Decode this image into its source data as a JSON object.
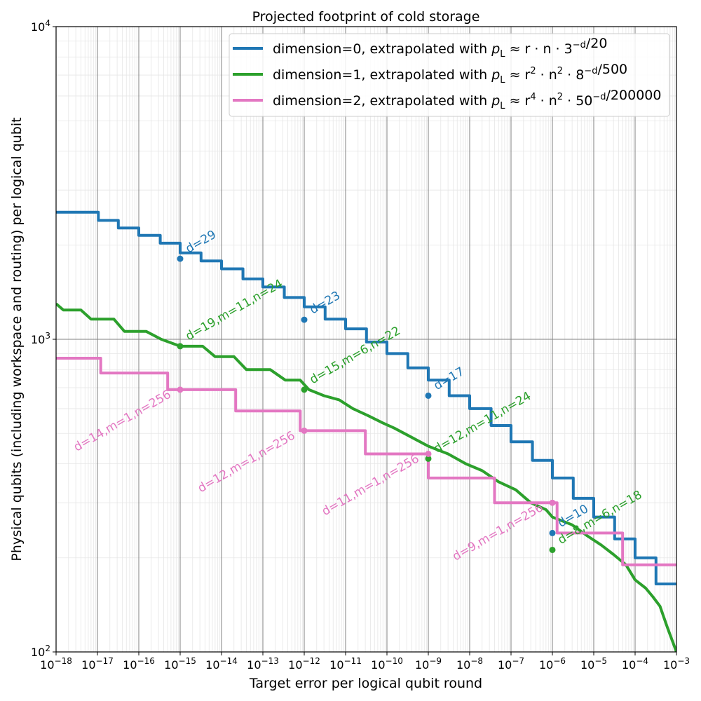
{
  "chart_data": {
    "type": "line",
    "title": "Projected footprint of cold storage",
    "xlabel": "Target error per logical qubit round",
    "ylabel": "Physical qubits (including workspace and routing) per logical qubit",
    "x_scale": "log",
    "y_scale": "log",
    "xlim": [
      1e-18,
      0.001
    ],
    "ylim": [
      100,
      10000
    ],
    "x_ticks": [
      {
        "value": 1e-18,
        "base": "10",
        "exp": "−18"
      },
      {
        "value": 1e-17,
        "base": "10",
        "exp": "−17"
      },
      {
        "value": 1e-16,
        "base": "10",
        "exp": "−16"
      },
      {
        "value": 1e-15,
        "base": "10",
        "exp": "−15"
      },
      {
        "value": 1e-14,
        "base": "10",
        "exp": "−14"
      },
      {
        "value": 1e-13,
        "base": "10",
        "exp": "−13"
      },
      {
        "value": 1e-12,
        "base": "10",
        "exp": "−12"
      },
      {
        "value": 1e-11,
        "base": "10",
        "exp": "−11"
      },
      {
        "value": 1e-10,
        "base": "10",
        "exp": "−10"
      },
      {
        "value": 1e-09,
        "base": "10",
        "exp": "−9"
      },
      {
        "value": 1e-08,
        "base": "10",
        "exp": "−8"
      },
      {
        "value": 1e-07,
        "base": "10",
        "exp": "−7"
      },
      {
        "value": 1e-06,
        "base": "10",
        "exp": "−6"
      },
      {
        "value": 1e-05,
        "base": "10",
        "exp": "−5"
      },
      {
        "value": 0.0001,
        "base": "10",
        "exp": "−4"
      },
      {
        "value": 0.001,
        "base": "10",
        "exp": "−3"
      }
    ],
    "y_ticks": [
      {
        "value": 100,
        "base": "10",
        "exp": "2"
      },
      {
        "value": 1000,
        "base": "10",
        "exp": "3"
      },
      {
        "value": 10000,
        "base": "10",
        "exp": "4"
      }
    ],
    "grid": true,
    "legend_position": "top-right",
    "series": [
      {
        "name": "dimension=0, extrapolated with",
        "formula": {
          "pre": "p",
          "sub": "L",
          "mid": " ≈ r · n · 3",
          "sup": "−d",
          "post": "/20"
        },
        "color": "#1f77b4",
        "points": [
          [
            1e-18,
            2550
          ],
          [
            1.05e-17,
            2550
          ],
          [
            1.05e-17,
            2400
          ],
          [
            3.2e-17,
            2400
          ],
          [
            3.2e-17,
            2270
          ],
          [
            1e-16,
            2270
          ],
          [
            1e-16,
            2150
          ],
          [
            3.3e-16,
            2150
          ],
          [
            3.3e-16,
            2030
          ],
          [
            1e-15,
            2030
          ],
          [
            1e-15,
            1890
          ],
          [
            3.2e-15,
            1890
          ],
          [
            3.2e-15,
            1780
          ],
          [
            1e-14,
            1780
          ],
          [
            1e-14,
            1680
          ],
          [
            3.3e-14,
            1680
          ],
          [
            3.3e-14,
            1560
          ],
          [
            1e-13,
            1560
          ],
          [
            1e-13,
            1470
          ],
          [
            3.3e-13,
            1470
          ],
          [
            3.3e-13,
            1360
          ],
          [
            1e-12,
            1360
          ],
          [
            1e-12,
            1270
          ],
          [
            3.2e-12,
            1270
          ],
          [
            3.2e-12,
            1160
          ],
          [
            1e-11,
            1160
          ],
          [
            1e-11,
            1080
          ],
          [
            3.2e-11,
            1080
          ],
          [
            3.2e-11,
            980
          ],
          [
            1e-10,
            980
          ],
          [
            1e-10,
            900
          ],
          [
            3.2e-10,
            900
          ],
          [
            3.2e-10,
            810
          ],
          [
            1e-09,
            810
          ],
          [
            1e-09,
            740
          ],
          [
            3.2e-09,
            740
          ],
          [
            3.2e-09,
            660
          ],
          [
            1e-08,
            660
          ],
          [
            1e-08,
            600
          ],
          [
            3.3e-08,
            600
          ],
          [
            3.3e-08,
            530
          ],
          [
            1e-07,
            530
          ],
          [
            1e-07,
            470
          ],
          [
            3.3e-07,
            470
          ],
          [
            3.3e-07,
            410
          ],
          [
            1e-06,
            410
          ],
          [
            1e-06,
            360
          ],
          [
            3.2e-06,
            360
          ],
          [
            3.2e-06,
            310
          ],
          [
            1e-05,
            310
          ],
          [
            1e-05,
            270
          ],
          [
            3.2e-05,
            270
          ],
          [
            3.2e-05,
            230
          ],
          [
            0.0001,
            230
          ],
          [
            0.0001,
            200
          ],
          [
            0.00032,
            200
          ],
          [
            0.00032,
            165
          ],
          [
            0.001,
            165
          ]
        ],
        "markers": [
          {
            "x": 1e-15,
            "y": 1810,
            "label": "d=29"
          },
          {
            "x": 1e-12,
            "y": 1155,
            "label": "d=23"
          },
          {
            "x": 1e-09,
            "y": 660,
            "label": "d=17"
          },
          {
            "x": 1e-06,
            "y": 240,
            "label": "d=10"
          }
        ]
      },
      {
        "name": "dimension=1, extrapolated with",
        "formula": {
          "pre": "p",
          "sub": "L",
          "mid": " ≈ r",
          "sup": "2",
          "mid2": " · n",
          "sup2": "2",
          "mid3": " · 8",
          "sup3": "−d",
          "post": "/500"
        },
        "color": "#2ca02c",
        "points": [
          [
            1e-18,
            1300
          ],
          [
            1.5e-18,
            1240
          ],
          [
            4e-18,
            1240
          ],
          [
            7e-18,
            1160
          ],
          [
            2.5e-17,
            1160
          ],
          [
            4.5e-17,
            1060
          ],
          [
            1.5e-16,
            1060
          ],
          [
            3.5e-16,
            1000
          ],
          [
            1e-15,
            950
          ],
          [
            3.5e-15,
            950
          ],
          [
            7e-15,
            880
          ],
          [
            2e-14,
            880
          ],
          [
            4e-14,
            800
          ],
          [
            1.5e-13,
            800
          ],
          [
            3.5e-13,
            740
          ],
          [
            8e-13,
            740
          ],
          [
            1.3e-12,
            690
          ],
          [
            3e-12,
            660
          ],
          [
            7e-12,
            640
          ],
          [
            1.5e-11,
            600
          ],
          [
            3.5e-11,
            570
          ],
          [
            8e-11,
            540
          ],
          [
            1.5e-10,
            520
          ],
          [
            3.5e-10,
            490
          ],
          [
            1e-09,
            455
          ],
          [
            3e-09,
            430
          ],
          [
            8e-09,
            400
          ],
          [
            2e-08,
            380
          ],
          [
            5e-08,
            350
          ],
          [
            1.3e-07,
            330
          ],
          [
            3e-07,
            300
          ],
          [
            7e-07,
            285
          ],
          [
            1e-06,
            270
          ],
          [
            3e-06,
            255
          ],
          [
            7e-06,
            235
          ],
          [
            1.5e-05,
            220
          ],
          [
            3e-05,
            205
          ],
          [
            6e-05,
            190
          ],
          [
            0.0001,
            170
          ],
          [
            0.00018,
            160
          ],
          [
            0.00027,
            150
          ],
          [
            0.0004,
            140
          ],
          [
            0.0006,
            120
          ],
          [
            0.001,
            100
          ]
        ],
        "markers": [
          {
            "x": 1e-15,
            "y": 950,
            "label": "d=19,m=11,n=24"
          },
          {
            "x": 1e-12,
            "y": 690,
            "label": "d=15,m=6,n=22"
          },
          {
            "x": 1e-09,
            "y": 415,
            "label": "d=12,m=11,n=24"
          },
          {
            "x": 1e-06,
            "y": 212,
            "label": "d=8,m=6,n=18"
          }
        ]
      },
      {
        "name": "dimension=2, extrapolated with",
        "formula": {
          "pre": "p",
          "sub": "L",
          "mid": " ≈ r",
          "sup": "4",
          "mid2": " · n",
          "sup2": "2",
          "mid3": " · 50",
          "sup3": "−d",
          "post": "/200000"
        },
        "color": "#e377c2",
        "points": [
          [
            1e-18,
            870
          ],
          [
            1.2e-17,
            870
          ],
          [
            1.2e-17,
            780
          ],
          [
            5e-16,
            780
          ],
          [
            5e-16,
            690
          ],
          [
            2.2e-14,
            690
          ],
          [
            2.2e-14,
            590
          ],
          [
            8e-13,
            590
          ],
          [
            8e-13,
            510
          ],
          [
            3e-11,
            510
          ],
          [
            3e-11,
            430
          ],
          [
            1e-09,
            430
          ],
          [
            1e-09,
            360
          ],
          [
            4e-08,
            360
          ],
          [
            4e-08,
            300
          ],
          [
            1.3e-06,
            300
          ],
          [
            1.3e-06,
            240
          ],
          [
            5e-05,
            240
          ],
          [
            5e-05,
            190
          ],
          [
            0.001,
            190
          ]
        ],
        "markers": [
          {
            "x": 1e-15,
            "y": 690,
            "label": "d=14,m=1,n=256"
          },
          {
            "x": 1e-12,
            "y": 510,
            "label": "d=12,m=1,n=256"
          },
          {
            "x": 1e-09,
            "y": 430,
            "label": "d=11,m=1,n=256"
          },
          {
            "x": 1e-06,
            "y": 300,
            "label": "d=9,m=1,n=256"
          }
        ]
      }
    ]
  }
}
